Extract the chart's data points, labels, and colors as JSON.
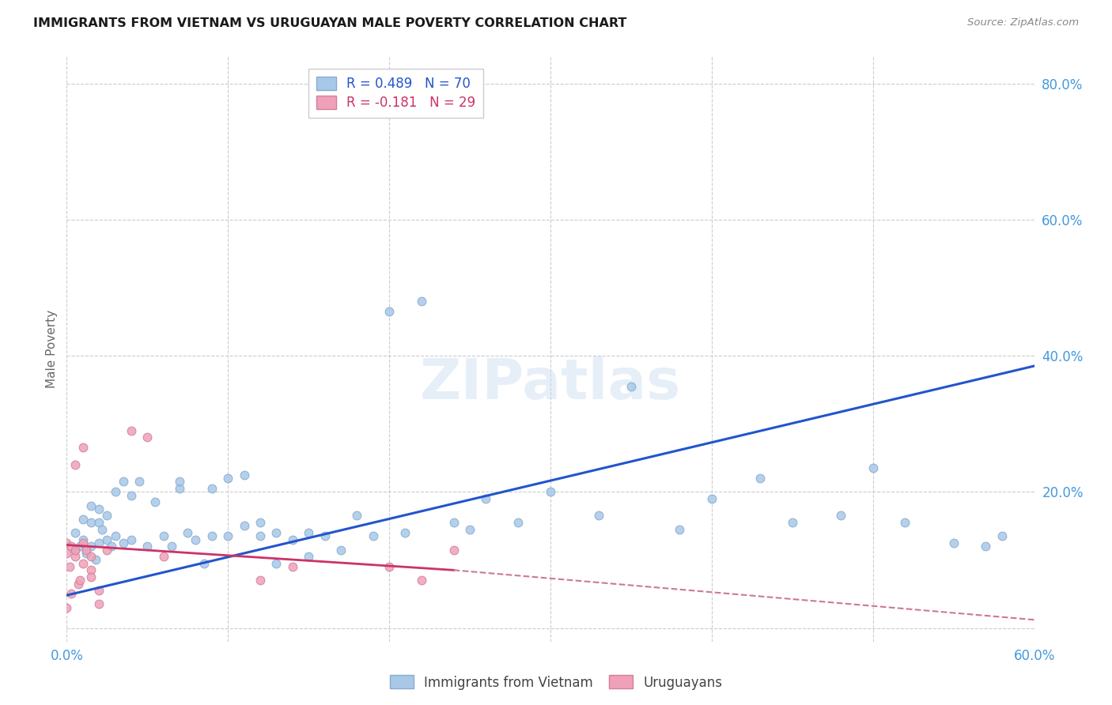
{
  "title": "IMMIGRANTS FROM VIETNAM VS URUGUAYAN MALE POVERTY CORRELATION CHART",
  "source": "Source: ZipAtlas.com",
  "ylabel": "Male Poverty",
  "watermark": "ZIPatlas",
  "legend_label1": "R = 0.489   N = 70",
  "legend_label2": "R = -0.181   N = 29",
  "legend_label3": "Immigrants from Vietnam",
  "legend_label4": "Uruguayans",
  "title_color": "#1a1a1a",
  "source_color": "#888888",
  "blue_color": "#A8C8E8",
  "pink_color": "#F0A0B8",
  "blue_edge_color": "#88AACE",
  "pink_edge_color": "#D08098",
  "blue_line_color": "#2255CC",
  "pink_line_color": "#CC3366",
  "pink_dashed_color": "#CC7799",
  "ylabel_color": "#666666",
  "axis_tick_color": "#4499DD",
  "xmin": 0.0,
  "xmax": 0.6,
  "ymin": -0.02,
  "ymax": 0.84,
  "xtick_vals": [
    0.0,
    0.1,
    0.2,
    0.3,
    0.4,
    0.5,
    0.6
  ],
  "ytick_vals": [
    0.0,
    0.2,
    0.4,
    0.6,
    0.8
  ],
  "ytick_labels": [
    "",
    "20.0%",
    "40.0%",
    "60.0%",
    "80.0%"
  ],
  "xtick_labels": [
    "0.0%",
    "",
    "",
    "",
    "",
    "",
    "60.0%"
  ],
  "blue_scatter_x": [
    0.005,
    0.005,
    0.008,
    0.01,
    0.01,
    0.012,
    0.015,
    0.015,
    0.015,
    0.018,
    0.02,
    0.02,
    0.02,
    0.022,
    0.025,
    0.025,
    0.028,
    0.03,
    0.03,
    0.035,
    0.035,
    0.04,
    0.04,
    0.045,
    0.05,
    0.055,
    0.06,
    0.065,
    0.07,
    0.07,
    0.075,
    0.08,
    0.085,
    0.09,
    0.09,
    0.1,
    0.1,
    0.11,
    0.11,
    0.12,
    0.12,
    0.13,
    0.13,
    0.14,
    0.15,
    0.15,
    0.16,
    0.17,
    0.18,
    0.19,
    0.2,
    0.21,
    0.22,
    0.24,
    0.25,
    0.26,
    0.28,
    0.3,
    0.33,
    0.35,
    0.38,
    0.4,
    0.43,
    0.45,
    0.48,
    0.5,
    0.52,
    0.55,
    0.57,
    0.58
  ],
  "blue_scatter_y": [
    0.115,
    0.14,
    0.12,
    0.13,
    0.16,
    0.11,
    0.12,
    0.155,
    0.18,
    0.1,
    0.125,
    0.155,
    0.175,
    0.145,
    0.13,
    0.165,
    0.12,
    0.135,
    0.2,
    0.125,
    0.215,
    0.13,
    0.195,
    0.215,
    0.12,
    0.185,
    0.135,
    0.12,
    0.205,
    0.215,
    0.14,
    0.13,
    0.095,
    0.135,
    0.205,
    0.22,
    0.135,
    0.15,
    0.225,
    0.135,
    0.155,
    0.095,
    0.14,
    0.13,
    0.105,
    0.14,
    0.135,
    0.115,
    0.165,
    0.135,
    0.465,
    0.14,
    0.48,
    0.155,
    0.145,
    0.19,
    0.155,
    0.2,
    0.165,
    0.355,
    0.145,
    0.19,
    0.22,
    0.155,
    0.165,
    0.235,
    0.155,
    0.125,
    0.12,
    0.135
  ],
  "pink_scatter_x": [
    0.0,
    0.0,
    0.002,
    0.003,
    0.005,
    0.005,
    0.007,
    0.008,
    0.01,
    0.01,
    0.012,
    0.015,
    0.015,
    0.02,
    0.02,
    0.025,
    0.04,
    0.05,
    0.06,
    0.12,
    0.14,
    0.2,
    0.22,
    0.24,
    0.0,
    0.003,
    0.005,
    0.01,
    0.015
  ],
  "pink_scatter_y": [
    0.125,
    0.11,
    0.09,
    0.12,
    0.105,
    0.115,
    0.065,
    0.07,
    0.095,
    0.125,
    0.115,
    0.085,
    0.075,
    0.055,
    0.035,
    0.115,
    0.29,
    0.28,
    0.105,
    0.07,
    0.09,
    0.09,
    0.07,
    0.115,
    0.03,
    0.05,
    0.24,
    0.265,
    0.105
  ],
  "blue_line_x": [
    0.0,
    0.6
  ],
  "blue_line_y": [
    0.048,
    0.385
  ],
  "pink_solid_line_x": [
    0.0,
    0.24
  ],
  "pink_solid_line_y": [
    0.122,
    0.085
  ],
  "pink_dashed_line_x": [
    0.24,
    0.6
  ],
  "pink_dashed_line_y": [
    0.085,
    0.012
  ],
  "grid_color": "#CCCCCC",
  "background_color": "#FFFFFF",
  "scatter_size": 60
}
